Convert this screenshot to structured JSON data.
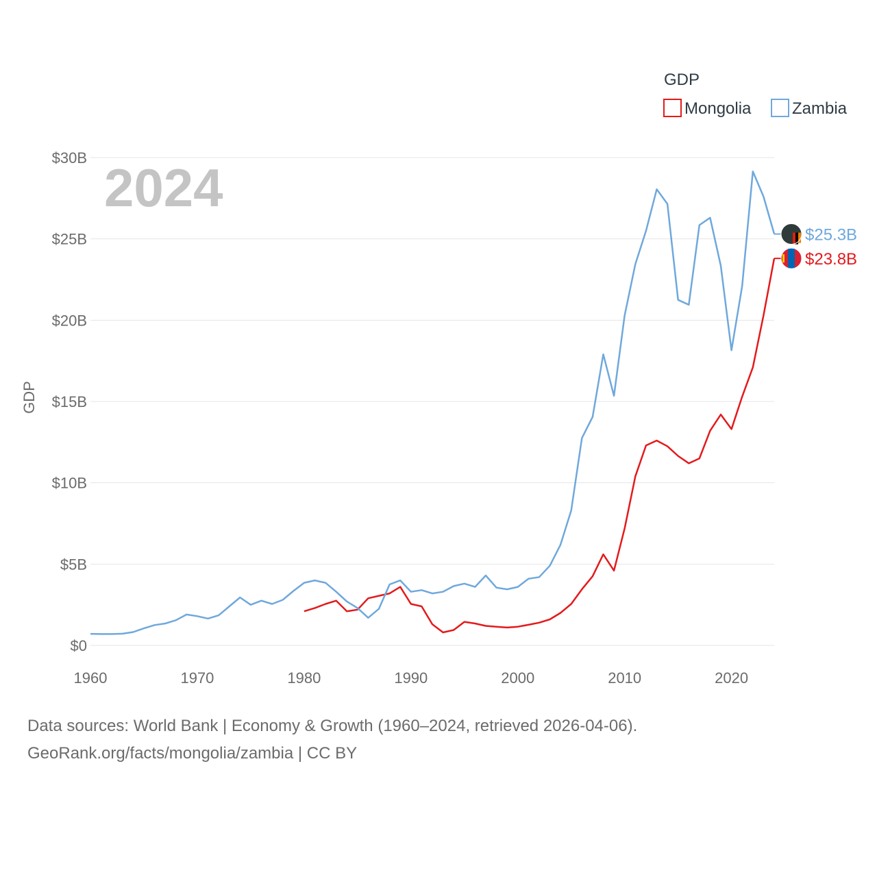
{
  "chart_data": {
    "type": "line",
    "title": "GDP",
    "big_year": "2024",
    "ylabel": "GDP",
    "xlim": [
      1960,
      2024
    ],
    "ylim": [
      0,
      30
    ],
    "y_ticks": [
      0,
      5,
      10,
      15,
      20,
      25,
      30
    ],
    "y_tick_labels": [
      "$0",
      "$5B",
      "$10B",
      "$15B",
      "$20B",
      "$25B",
      "$30B"
    ],
    "x_ticks": [
      1960,
      1970,
      1980,
      1990,
      2000,
      2010,
      2020
    ],
    "x_tick_labels": [
      "1960",
      "1970",
      "1980",
      "1990",
      "2000",
      "2010",
      "2020"
    ],
    "grid": true,
    "legend_position": "top-right",
    "series": [
      {
        "name": "Mongolia",
        "color": "#e31a1c",
        "end_label": "$23.8B",
        "flag_icon": "mongolia-flag-icon",
        "x": [
          1980,
          1981,
          1982,
          1983,
          1984,
          1985,
          1986,
          1987,
          1988,
          1989,
          1990,
          1991,
          1992,
          1993,
          1994,
          1995,
          1996,
          1997,
          1998,
          1999,
          2000,
          2001,
          2002,
          2003,
          2004,
          2005,
          2006,
          2007,
          2008,
          2009,
          2010,
          2011,
          2012,
          2013,
          2014,
          2015,
          2016,
          2017,
          2018,
          2019,
          2020,
          2021,
          2022,
          2023,
          2024
        ],
        "values": [
          2.1,
          2.3,
          2.55,
          2.75,
          2.1,
          2.2,
          2.9,
          3.05,
          3.2,
          3.6,
          2.55,
          2.4,
          1.3,
          0.8,
          0.95,
          1.45,
          1.35,
          1.2,
          1.15,
          1.1,
          1.15,
          1.27,
          1.4,
          1.6,
          2.0,
          2.55,
          3.45,
          4.25,
          5.6,
          4.6,
          7.2,
          10.4,
          12.3,
          12.6,
          12.25,
          11.65,
          11.2,
          11.5,
          13.2,
          14.2,
          13.3,
          15.3,
          17.1,
          20.3,
          23.8
        ]
      },
      {
        "name": "Zambia",
        "color": "#6fa8dc",
        "end_label": "$25.3B",
        "flag_icon": "zambia-flag-icon",
        "x": [
          1960,
          1961,
          1962,
          1963,
          1964,
          1965,
          1966,
          1967,
          1968,
          1969,
          1970,
          1971,
          1972,
          1973,
          1974,
          1975,
          1976,
          1977,
          1978,
          1979,
          1980,
          1981,
          1982,
          1983,
          1984,
          1985,
          1986,
          1987,
          1988,
          1989,
          1990,
          1991,
          1992,
          1993,
          1994,
          1995,
          1996,
          1997,
          1998,
          1999,
          2000,
          2001,
          2002,
          2003,
          2004,
          2005,
          2006,
          2007,
          2008,
          2009,
          2010,
          2011,
          2012,
          2013,
          2014,
          2015,
          2016,
          2017,
          2018,
          2019,
          2020,
          2021,
          2022,
          2023,
          2024
        ],
        "values": [
          0.71,
          0.7,
          0.7,
          0.72,
          0.82,
          1.05,
          1.25,
          1.35,
          1.55,
          1.9,
          1.8,
          1.65,
          1.85,
          2.4,
          2.95,
          2.5,
          2.75,
          2.55,
          2.8,
          3.35,
          3.85,
          4.0,
          3.85,
          3.3,
          2.7,
          2.3,
          1.7,
          2.25,
          3.75,
          4.0,
          3.3,
          3.4,
          3.2,
          3.3,
          3.65,
          3.8,
          3.6,
          4.3,
          3.55,
          3.45,
          3.6,
          4.1,
          4.2,
          4.9,
          6.2,
          8.3,
          12.75,
          14.05,
          17.9,
          15.35,
          20.3,
          23.45,
          25.5,
          28.05,
          27.15,
          21.25,
          20.95,
          25.85,
          26.3,
          23.35,
          18.15,
          22.1,
          29.15,
          27.6,
          25.3
        ]
      }
    ]
  },
  "footer": {
    "line1": "Data sources: World Bank | Economy & Growth (1960–2024, retrieved 2026-04-06).",
    "line2": "GeoRank.org/facts/mongolia/zambia | CC BY"
  }
}
